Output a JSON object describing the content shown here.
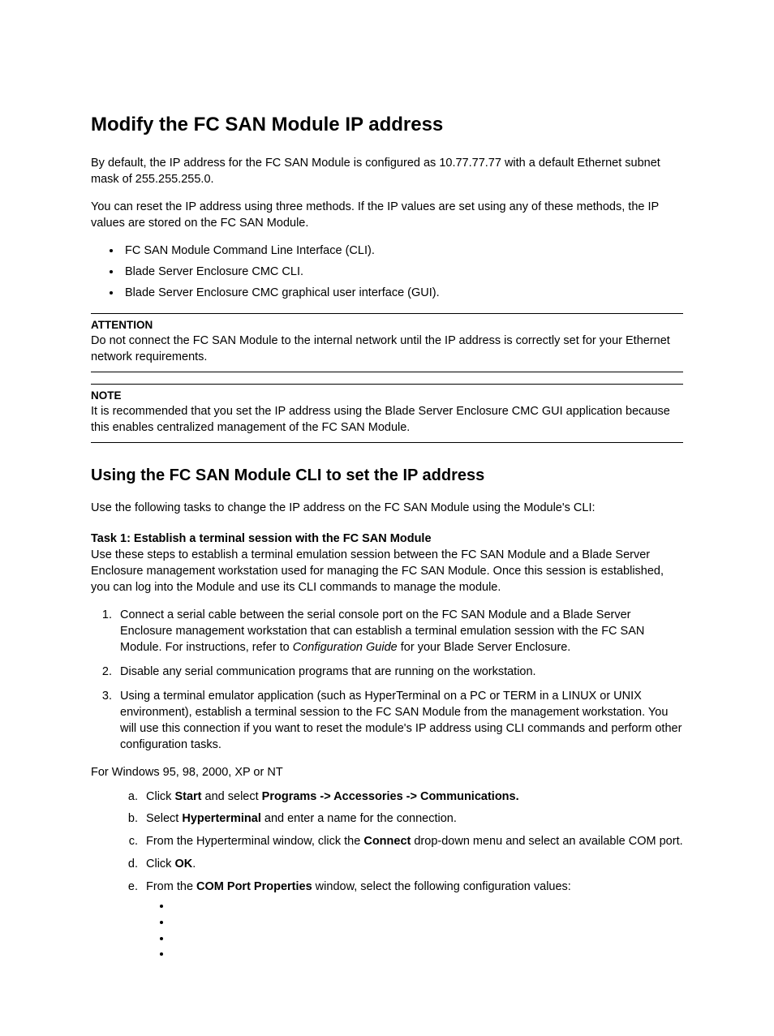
{
  "title": "Modify the FC SAN Module IP address",
  "intro1": "By default, the IP address for the FC SAN Module is configured as 10.77.77.77 with a default Ethernet subnet mask of 255.255.255.0.",
  "intro2": "You can reset the IP address using three methods. If the IP values are set using any of these methods, the IP values are stored on the FC SAN Module.",
  "methods": [
    "FC SAN Module Command Line Interface (CLI).",
    "Blade Server Enclosure CMC CLI.",
    "Blade Server Enclosure CMC graphical user interface (GUI)."
  ],
  "attention": {
    "label": "ATTENTION",
    "body": "Do not connect the FC SAN Module to the internal network until the IP address is correctly set for your Ethernet network requirements."
  },
  "note": {
    "label": "NOTE",
    "body": "It is recommended that you set the IP address using the Blade Server Enclosure CMC GUI application because this enables centralized management of the FC SAN Module."
  },
  "section2_title": "Using the FC SAN Module CLI to set the IP address",
  "section2_intro": "Use the following tasks to change the IP address on the FC SAN Module using the Module's CLI:",
  "task1_title": "Task 1: Establish a terminal session with the FC SAN Module",
  "task1_intro": "Use these steps to establish a terminal emulation session between the FC SAN Module and a Blade Server Enclosure management workstation used for managing the FC SAN Module. Once this session is established, you can log into the Module and use its CLI commands to manage the module.",
  "steps": {
    "s1_pre": "Connect a serial cable between the serial console port on the FC SAN Module and a Blade Server Enclosure management workstation that can establish a terminal emulation session with the FC SAN Module. For instructions, refer to ",
    "s1_em": "Configuration Guide",
    "s1_post": " for your Blade Server Enclosure.",
    "s2": "Disable any serial communication programs that are running on the workstation.",
    "s3": "Using a terminal emulator application (such as HyperTerminal on a PC or TERM in a LINUX or UNIX environment), establish a terminal session to the FC SAN Module from the management workstation. You will use this connection if you want to reset the module's IP address using CLI commands and perform other configuration tasks."
  },
  "win_intro": "For Windows 95, 98, 2000, XP or NT",
  "sub": {
    "a_pre": "Click ",
    "a_b1": "Start",
    "a_mid": " and select ",
    "a_b2": "Programs -> Accessories -> Communications.",
    "b_pre": "Select ",
    "b_b1": "Hyperterminal",
    "b_post": " and enter a name for the connection.",
    "c_pre": "From the Hyperterminal window, click the ",
    "c_b1": "Connect",
    "c_post": " drop-down menu and select an available COM port.",
    "d_pre": "Click ",
    "d_b1": "OK",
    "d_post": ".",
    "e_pre": "From the ",
    "e_b1": "COM Port Properties",
    "e_post": " window, select the following configuration values:"
  },
  "config_values": [
    "",
    "",
    "",
    ""
  ]
}
